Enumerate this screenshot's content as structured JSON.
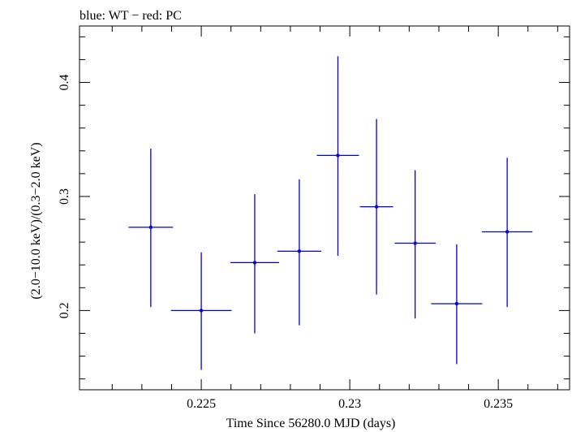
{
  "chart_data": {
    "type": "scatter",
    "title": "blue: WT − red: PC",
    "xlabel": "Time Since 56280.0 MJD (days)",
    "ylabel": "(2.0−10.0 keV)/(0.3−2.0 keV)",
    "xlim": [
      0.2209,
      0.2374
    ],
    "ylim": [
      0.1305,
      0.4495
    ],
    "grid": false,
    "x_ticks": [
      {
        "value": 0.225,
        "label": "0.225"
      },
      {
        "value": 0.23,
        "label": "0.23"
      },
      {
        "value": 0.235,
        "label": "0.235"
      }
    ],
    "y_ticks": [
      {
        "value": 0.2,
        "label": "0.2"
      },
      {
        "value": 0.3,
        "label": "0.3"
      },
      {
        "value": 0.4,
        "label": "0.4"
      }
    ],
    "series": [
      {
        "name": "WT",
        "color": "#0000dd",
        "points": [
          {
            "x": 0.2233,
            "xerr": 0.00075,
            "y": 0.273,
            "yerr_low": 0.203,
            "yerr_high": 0.342
          },
          {
            "x": 0.225,
            "xerr": 0.00102,
            "y": 0.2,
            "yerr_low": 0.148,
            "yerr_high": 0.251
          },
          {
            "x": 0.2268,
            "xerr": 0.00082,
            "y": 0.242,
            "yerr_low": 0.18,
            "yerr_high": 0.302
          },
          {
            "x": 0.2283,
            "xerr": 0.00074,
            "y": 0.252,
            "yerr_low": 0.187,
            "yerr_high": 0.315
          },
          {
            "x": 0.2296,
            "xerr": 0.00071,
            "y": 0.336,
            "yerr_low": 0.248,
            "yerr_high": 0.423
          },
          {
            "x": 0.2309,
            "xerr": 0.00056,
            "y": 0.291,
            "yerr_low": 0.214,
            "yerr_high": 0.368
          },
          {
            "x": 0.2322,
            "xerr": 0.00069,
            "y": 0.259,
            "yerr_low": 0.193,
            "yerr_high": 0.323
          },
          {
            "x": 0.2336,
            "xerr": 0.00086,
            "y": 0.206,
            "yerr_low": 0.153,
            "yerr_high": 0.258
          },
          {
            "x": 0.2353,
            "xerr": 0.00085,
            "y": 0.269,
            "yerr_low": 0.203,
            "yerr_high": 0.334
          }
        ]
      }
    ]
  }
}
